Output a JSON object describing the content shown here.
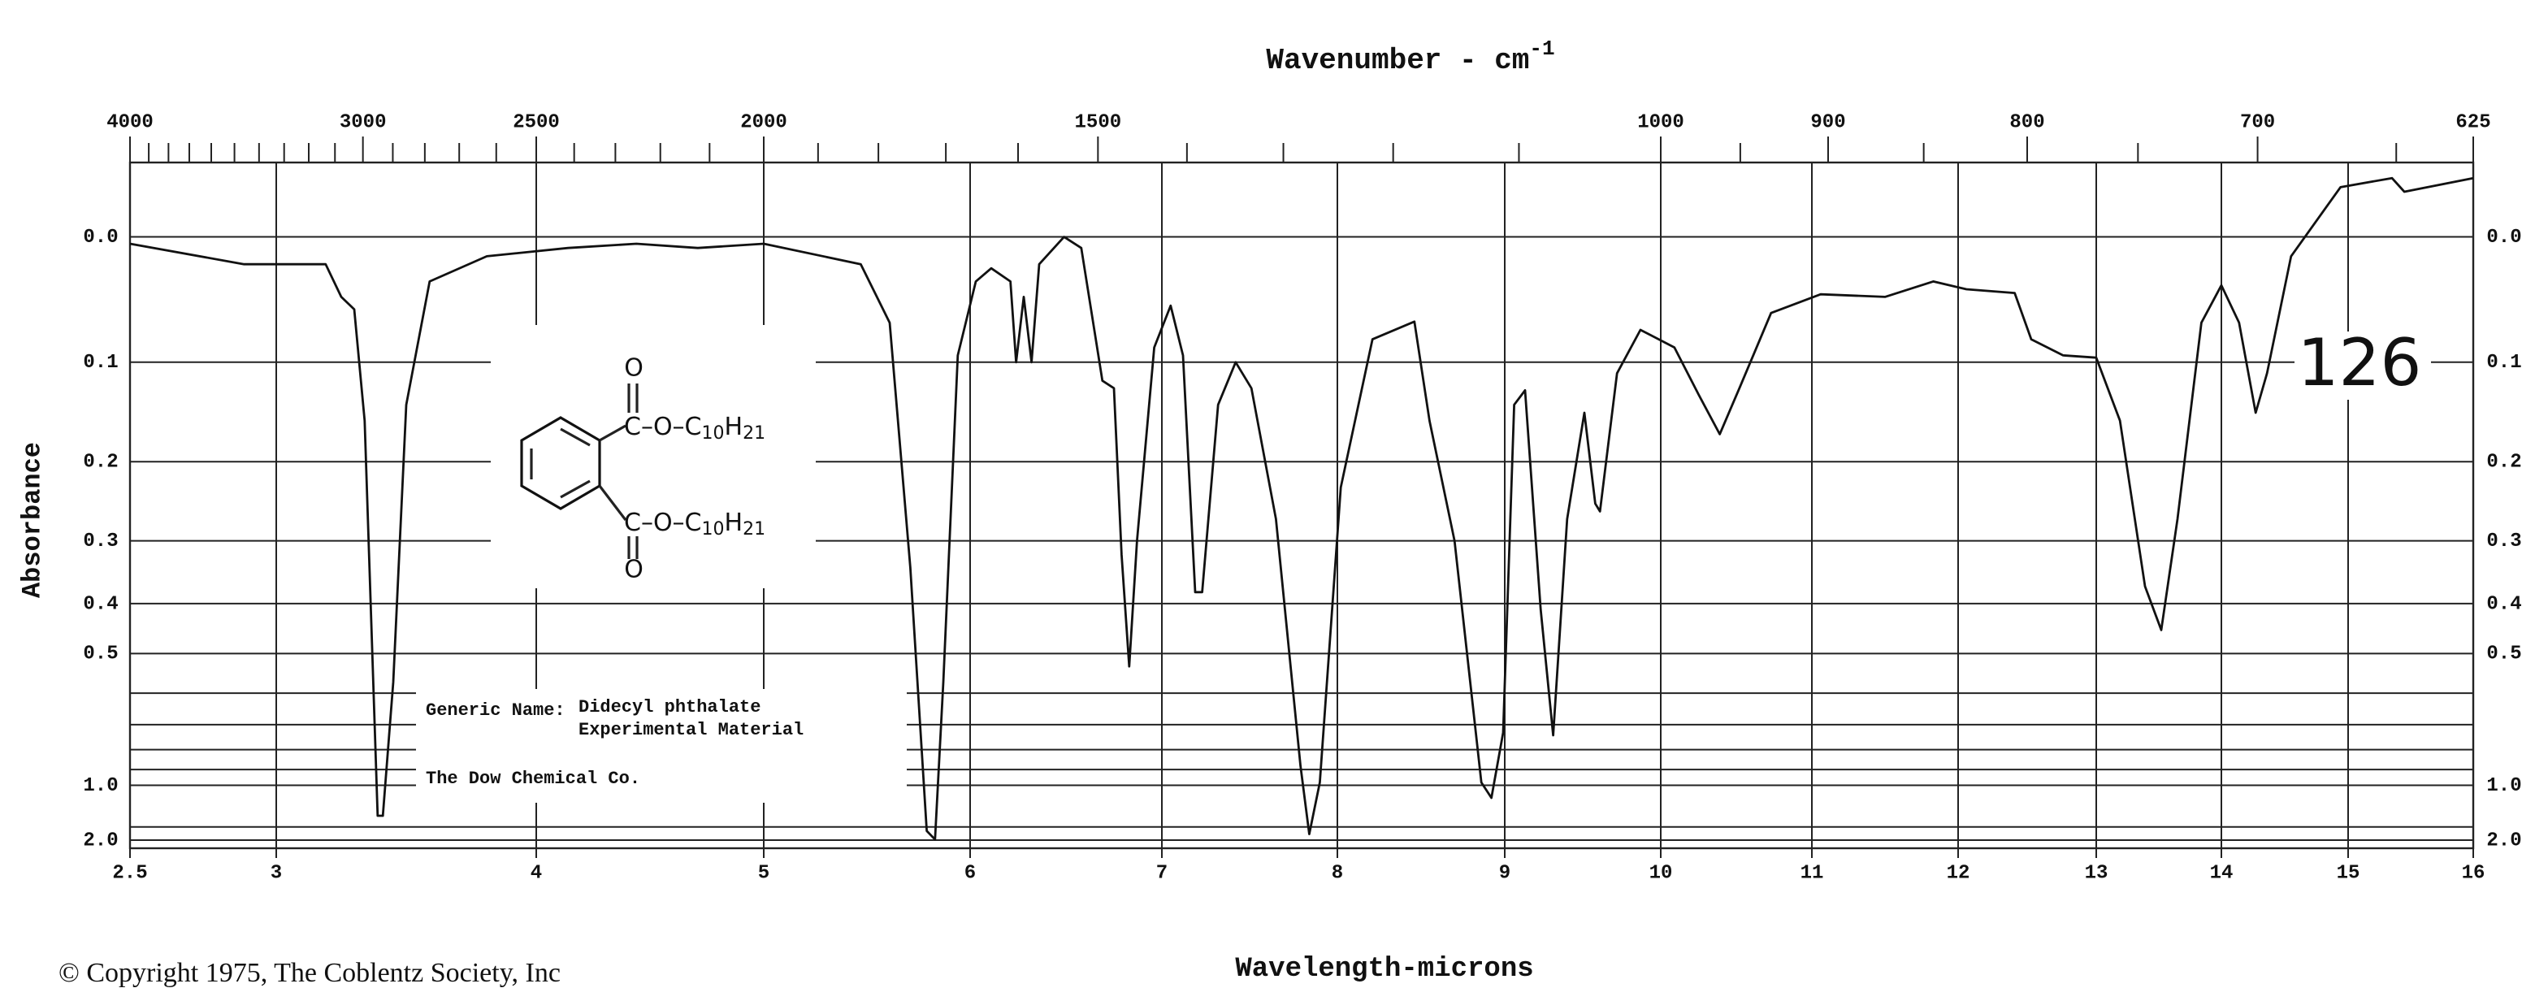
{
  "chart_data": {
    "type": "line",
    "x2_label": "Wavenumber - cm",
    "x2_label_sup": "-1",
    "x_label": "Wavelength-microns",
    "y_label": "Absorbance",
    "scale": "absorbance",
    "color": "#111111",
    "grid": true,
    "xlim": [
      2.5,
      16
    ],
    "xticks": [
      2.5,
      3,
      4,
      5,
      6,
      7,
      8,
      9,
      10,
      11,
      12,
      13,
      14,
      15,
      16
    ],
    "x2ticks": [
      4000,
      3000,
      2500,
      2000,
      1500,
      1000,
      900,
      800,
      700,
      625
    ],
    "x2minor": [
      3900,
      3800,
      3700,
      3600,
      3500,
      3400,
      3300,
      3200,
      3100,
      2900,
      2800,
      2700,
      2600,
      2400,
      2300,
      2200,
      2100,
      1900,
      1800,
      1700,
      1600,
      1400,
      1300,
      1200,
      1100,
      950,
      850,
      750,
      650
    ],
    "ylim": [
      -0.05,
      2.0
    ],
    "yticks": [
      {
        "value": 0,
        "label": "0.0"
      },
      0.1,
      0.2,
      0.3,
      0.4,
      0.5,
      {
        "value": 1,
        "label": "1.0"
      },
      {
        "value": 2,
        "label": "2.0"
      }
    ],
    "yminor": [
      0.6,
      0.7,
      0.8,
      0.9,
      1.5
    ],
    "x": [
      2.5,
      2.89,
      3.19,
      3.25,
      3.3,
      3.34,
      3.39,
      3.41,
      3.45,
      3.5,
      3.59,
      3.81,
      4.14,
      4.44,
      4.71,
      5,
      5.47,
      5.61,
      5.71,
      5.79,
      5.83,
      5.87,
      5.94,
      6.03,
      6.11,
      6.21,
      6.24,
      6.28,
      6.32,
      6.36,
      6.49,
      6.58,
      6.69,
      6.75,
      6.79,
      6.83,
      6.87,
      6.96,
      7.05,
      7.12,
      7.19,
      7.23,
      7.32,
      7.42,
      7.51,
      7.65,
      7.79,
      7.84,
      7.9,
      8.02,
      8.21,
      8.46,
      8.55,
      8.7,
      8.86,
      8.92,
      8.99,
      9.06,
      9.13,
      9.23,
      9.31,
      9.4,
      9.51,
      9.58,
      9.61,
      9.72,
      9.87,
      10.09,
      10.25,
      10.39,
      10.52,
      10.73,
      11.06,
      11.5,
      11.83,
      12.06,
      12.41,
      12.53,
      12.76,
      13,
      13.19,
      13.39,
      13.52,
      13.65,
      13.84,
      14,
      14.14,
      14.27,
      14.36,
      14.55,
      14.94,
      15.35,
      15.45,
      16
    ],
    "values": [
      0.005,
      0.02,
      0.02,
      0.045,
      0.055,
      0.156,
      1.3,
      1.3,
      0.57,
      0.14,
      0.033,
      0.014,
      0.008,
      0.005,
      0.008,
      0.005,
      0.02,
      0.066,
      0.34,
      1.6,
      1.96,
      0.57,
      0.094,
      0.033,
      0.023,
      0.033,
      0.1,
      0.045,
      0.1,
      0.02,
      0,
      0.008,
      0.117,
      0.124,
      0.32,
      0.53,
      0.3,
      0.087,
      0.052,
      0.094,
      0.38,
      0.38,
      0.14,
      0.1,
      0.124,
      0.27,
      0.88,
      1.7,
      0.98,
      0.23,
      0.08,
      0.065,
      0.156,
      0.3,
      0.98,
      1.1,
      0.73,
      0.14,
      0.126,
      0.41,
      0.74,
      0.27,
      0.148,
      0.25,
      0.26,
      0.11,
      0.072,
      0.087,
      0.13,
      0.17,
      0.124,
      0.058,
      0.043,
      0.045,
      0.033,
      0.039,
      0.042,
      0.08,
      0.094,
      0.096,
      0.156,
      0.37,
      0.45,
      0.27,
      0.066,
      0.036,
      0.066,
      0.148,
      0.11,
      0.014,
      -0.034,
      -0.04,
      -0.031,
      -0.04
    ],
    "structure": {
      "o": "O",
      "chain": "C–O–C",
      "sub1": "10",
      "h": "H",
      "sub2": "21"
    },
    "annotations": {
      "generic": "Generic Name:",
      "name": "Didecyl phthalate",
      "material": "Experimental Material",
      "company": "The Dow Chemical Co.",
      "number": "126",
      "copyright": "© Copyright 1975, The Coblentz Society, Inc"
    }
  }
}
